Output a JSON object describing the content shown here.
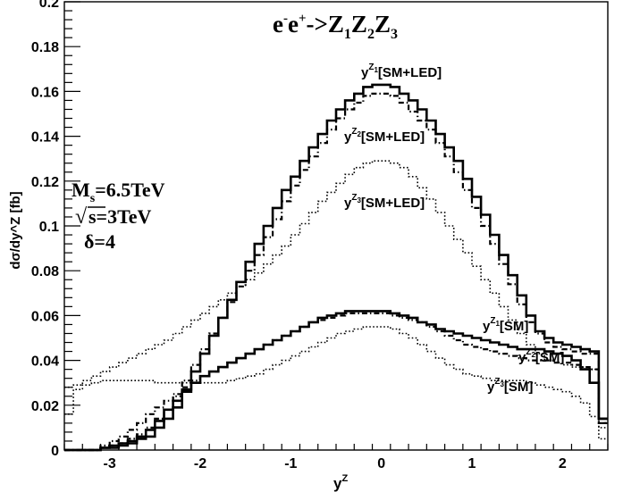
{
  "chart_data": {
    "type": "line",
    "title": {
      "base": "e",
      "sup1": "-",
      "mid": "e",
      "sup2": "+",
      "rest": "->Z",
      "s1": "1",
      "z2": "Z",
      "s2": "2",
      "z3": "Z",
      "s3": "3"
    },
    "xlabel": {
      "base": "y",
      "sup": "Z"
    },
    "ylabel": "dσ/dy^Z [fb]",
    "xlim": [
      -3.5,
      2.5
    ],
    "ylim": [
      0,
      0.2
    ],
    "x_ticks": [
      "-3",
      "-2",
      "-1",
      "0",
      "1",
      "2"
    ],
    "y_ticks": [
      "0",
      "0.02",
      "0.04",
      "0.06",
      "0.08",
      "0.1",
      "0.12",
      "0.14",
      "0.16",
      "0.18",
      "0.2"
    ],
    "params": {
      "ms": {
        "base": "M",
        "sub": "s",
        "rest": "=6.5TeV"
      },
      "sqrt_s": {
        "root": "√",
        "rest": "s=3TeV"
      },
      "delta": "δ=4"
    },
    "bin_edges": [
      -3.5,
      -3.4,
      -3.3,
      -3.2,
      -3.1,
      -3.0,
      -2.9,
      -2.8,
      -2.7,
      -2.6,
      -2.5,
      -2.4,
      -2.3,
      -2.2,
      -2.1,
      -2.0,
      -1.9,
      -1.8,
      -1.7,
      -1.6,
      -1.5,
      -1.4,
      -1.3,
      -1.2,
      -1.1,
      -1.0,
      -0.9,
      -0.8,
      -0.7,
      -0.6,
      -0.5,
      -0.4,
      -0.3,
      -0.2,
      -0.1,
      0.0,
      0.1,
      0.2,
      0.3,
      0.4,
      0.5,
      0.6,
      0.7,
      0.8,
      0.9,
      1.0,
      1.1,
      1.2,
      1.3,
      1.4,
      1.5,
      1.6,
      1.7,
      1.8,
      1.9,
      2.0,
      2.1,
      2.2,
      2.3,
      2.4,
      2.5
    ],
    "series": [
      {
        "name_base": "y",
        "name_sup": "Z",
        "name_sup_sub": "1",
        "name_suffix": "[SM+LED]",
        "style": "solid",
        "width": 2.6,
        "values": [
          0,
          0,
          0,
          0,
          0.001,
          0.001,
          0.002,
          0.003,
          0.005,
          0.006,
          0.01,
          0.014,
          0.019,
          0.027,
          0.035,
          0.043,
          0.051,
          0.059,
          0.067,
          0.075,
          0.084,
          0.092,
          0.1,
          0.108,
          0.116,
          0.122,
          0.129,
          0.135,
          0.141,
          0.147,
          0.152,
          0.156,
          0.159,
          0.162,
          0.163,
          0.163,
          0.162,
          0.159,
          0.156,
          0.152,
          0.147,
          0.141,
          0.135,
          0.129,
          0.121,
          0.113,
          0.105,
          0.096,
          0.087,
          0.078,
          0.069,
          0.06,
          0.053,
          0.05,
          0.048,
          0.047,
          0.046,
          0.045,
          0.044,
          0.014
        ]
      },
      {
        "name_base": "y",
        "name_sup": "Z",
        "name_sup_sub": "2",
        "name_suffix": "[SM+LED]",
        "style": "dashdot",
        "width": 2.2,
        "values": [
          0,
          0,
          0,
          0,
          0.001,
          0.002,
          0.003,
          0.005,
          0.007,
          0.01,
          0.014,
          0.018,
          0.024,
          0.031,
          0.038,
          0.045,
          0.052,
          0.059,
          0.066,
          0.073,
          0.08,
          0.087,
          0.095,
          0.103,
          0.111,
          0.118,
          0.125,
          0.131,
          0.137,
          0.143,
          0.148,
          0.152,
          0.155,
          0.158,
          0.159,
          0.159,
          0.158,
          0.155,
          0.151,
          0.147,
          0.143,
          0.137,
          0.131,
          0.124,
          0.116,
          0.108,
          0.1,
          0.092,
          0.083,
          0.074,
          0.065,
          0.057,
          0.052,
          0.048,
          0.046,
          0.045,
          0.044,
          0.043,
          0.043,
          0.012
        ]
      },
      {
        "name_base": "y",
        "name_sup": "Z",
        "name_sup_sub": "3",
        "name_suffix": "[SM+LED]",
        "style": "dotted",
        "width": 1.6,
        "values": [
          0.028,
          0.029,
          0.031,
          0.033,
          0.035,
          0.037,
          0.039,
          0.041,
          0.043,
          0.045,
          0.047,
          0.049,
          0.052,
          0.055,
          0.058,
          0.061,
          0.064,
          0.067,
          0.07,
          0.073,
          0.076,
          0.079,
          0.083,
          0.087,
          0.091,
          0.096,
          0.101,
          0.106,
          0.111,
          0.115,
          0.119,
          0.123,
          0.126,
          0.128,
          0.129,
          0.129,
          0.128,
          0.126,
          0.122,
          0.117,
          0.112,
          0.106,
          0.1,
          0.094,
          0.088,
          0.082,
          0.076,
          0.07,
          0.064,
          0.058,
          0.052,
          0.047,
          0.043,
          0.04,
          0.039,
          0.038,
          0.037,
          0.037,
          0.036,
          0.01
        ]
      },
      {
        "name_base": "y",
        "name_sup": "Z",
        "name_sup_sub": "1",
        "name_suffix": "[SM]",
        "style": "solid",
        "width": 2.6,
        "values": [
          0,
          0,
          0,
          0,
          0.001,
          0.002,
          0.003,
          0.004,
          0.006,
          0.009,
          0.013,
          0.018,
          0.022,
          0.026,
          0.03,
          0.033,
          0.035,
          0.037,
          0.039,
          0.041,
          0.043,
          0.045,
          0.047,
          0.049,
          0.051,
          0.053,
          0.055,
          0.057,
          0.059,
          0.06,
          0.061,
          0.062,
          0.062,
          0.062,
          0.062,
          0.062,
          0.061,
          0.06,
          0.059,
          0.057,
          0.056,
          0.054,
          0.053,
          0.052,
          0.051,
          0.05,
          0.049,
          0.048,
          0.047,
          0.046,
          0.045,
          0.045,
          0.045,
          0.044,
          0.043,
          0.042,
          0.04,
          0.036,
          0.03,
          0.014
        ]
      },
      {
        "name_base": "y",
        "name_sup": "Z",
        "name_sup_sub": "2",
        "name_suffix": "[SM]",
        "style": "dashdot",
        "width": 2.2,
        "values": [
          0,
          0,
          0,
          0,
          0.002,
          0.004,
          0.006,
          0.009,
          0.012,
          0.016,
          0.019,
          0.022,
          0.025,
          0.028,
          0.031,
          0.033,
          0.035,
          0.037,
          0.039,
          0.041,
          0.043,
          0.045,
          0.047,
          0.049,
          0.051,
          0.053,
          0.055,
          0.057,
          0.058,
          0.059,
          0.06,
          0.061,
          0.061,
          0.061,
          0.061,
          0.061,
          0.06,
          0.059,
          0.058,
          0.057,
          0.055,
          0.053,
          0.051,
          0.049,
          0.047,
          0.046,
          0.045,
          0.044,
          0.043,
          0.042,
          0.041,
          0.04,
          0.04,
          0.04,
          0.039,
          0.039,
          0.038,
          0.037,
          0.036,
          0.012
        ]
      },
      {
        "name_base": "y",
        "name_sup": "Z",
        "name_sup_sub": "3",
        "name_suffix": "[SM]",
        "style": "dotted",
        "width": 1.6,
        "values": [
          0.016,
          0.027,
          0.029,
          0.03,
          0.031,
          0.031,
          0.031,
          0.031,
          0.031,
          0.031,
          0.03,
          0.03,
          0.03,
          0.03,
          0.03,
          0.03,
          0.03,
          0.03,
          0.031,
          0.032,
          0.033,
          0.034,
          0.036,
          0.038,
          0.04,
          0.042,
          0.044,
          0.046,
          0.048,
          0.05,
          0.052,
          0.053,
          0.054,
          0.055,
          0.055,
          0.055,
          0.054,
          0.052,
          0.05,
          0.047,
          0.044,
          0.041,
          0.038,
          0.036,
          0.034,
          0.033,
          0.032,
          0.031,
          0.031,
          0.031,
          0.031,
          0.03,
          0.029,
          0.028,
          0.027,
          0.026,
          0.024,
          0.021,
          0.015,
          0.005
        ]
      }
    ]
  }
}
